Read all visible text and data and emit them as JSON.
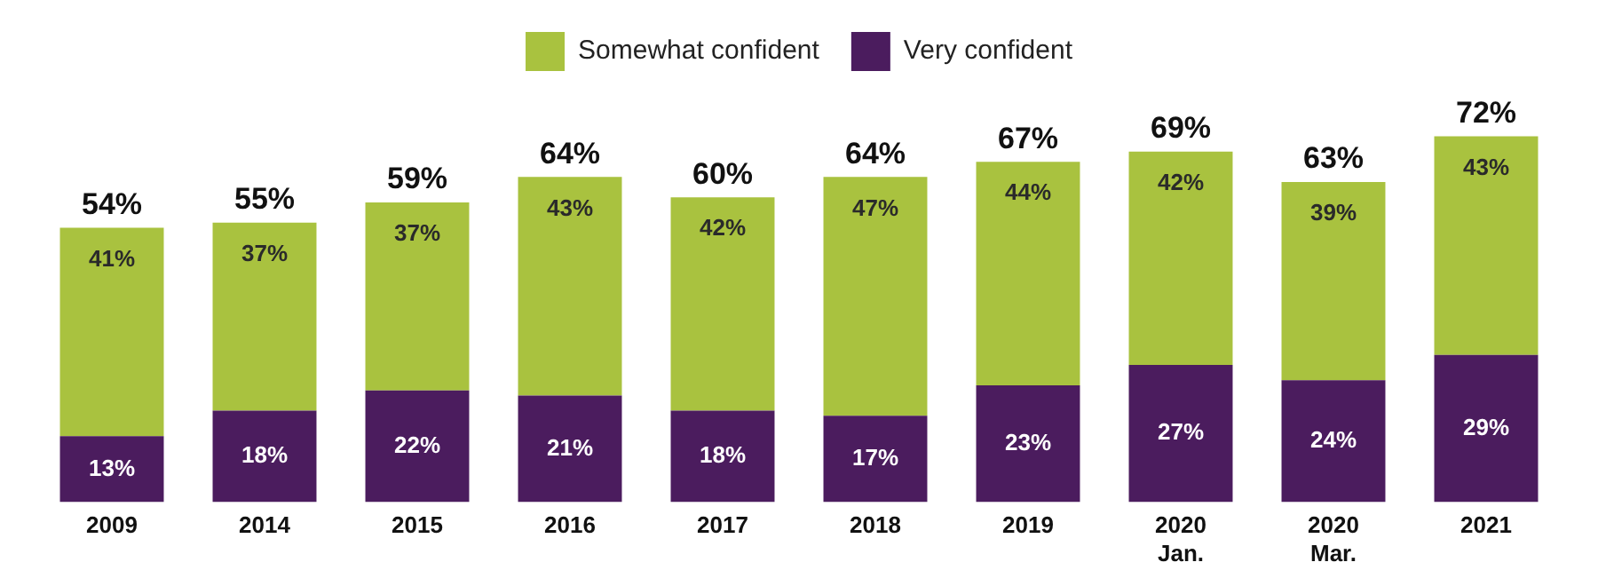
{
  "chart_data": {
    "type": "bar",
    "stacked": true,
    "legend": "top",
    "grid": false,
    "categories": [
      "2009",
      "2014",
      "2015",
      "2016",
      "2017",
      "2018",
      "2019",
      "2020\nJan.",
      "2020\nMar.",
      "2021"
    ],
    "series": [
      {
        "name": "Very confident",
        "color": "#4b1c5e",
        "values": [
          13,
          18,
          22,
          21,
          18,
          17,
          23,
          27,
          24,
          29
        ],
        "value_labels": [
          "13%",
          "18%",
          "22%",
          "21%",
          "18%",
          "17%",
          "23%",
          "27%",
          "24%",
          "29%"
        ]
      },
      {
        "name": "Somewhat confident",
        "color": "#a9c23f",
        "values": [
          41,
          37,
          37,
          43,
          42,
          47,
          44,
          42,
          39,
          43
        ],
        "value_labels": [
          "41%",
          "37%",
          "37%",
          "43%",
          "42%",
          "47%",
          "44%",
          "42%",
          "39%",
          "43%"
        ]
      }
    ],
    "totals": [
      "54%",
      "55%",
      "59%",
      "64%",
      "60%",
      "64%",
      "67%",
      "69%",
      "63%",
      "72%"
    ]
  }
}
